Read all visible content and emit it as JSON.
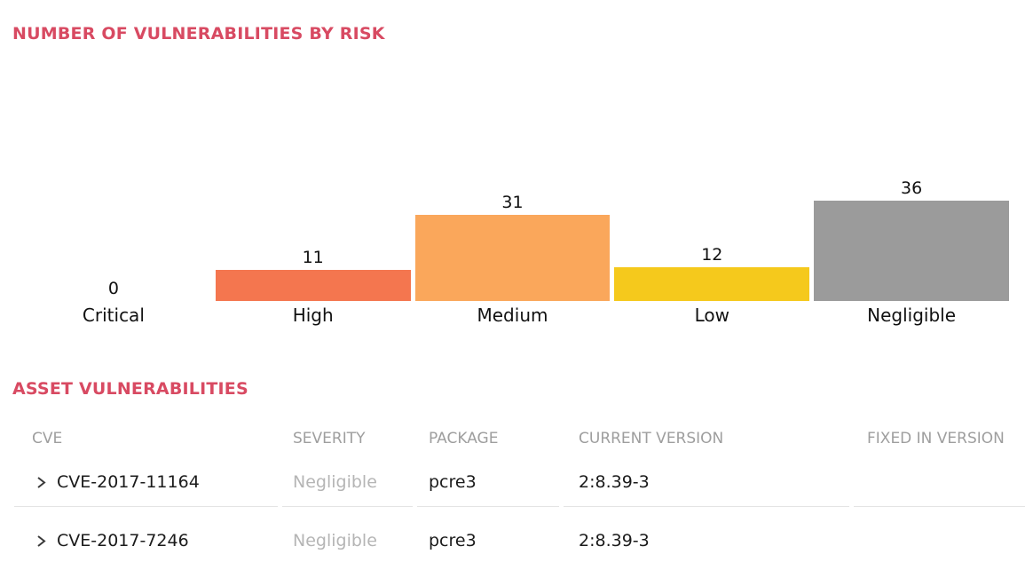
{
  "colors": {
    "accent": "#d84a62",
    "bar_high": "#f4764f",
    "bar_medium": "#faa75b",
    "bar_low": "#f5c91c",
    "bar_negligible": "#9b9b9b",
    "table_header_text": "#9e9e9e",
    "severity_muted_text": "#b5b5b5"
  },
  "chart_section": {
    "title": "NUMBER OF VULNERABILITIES BY RISK"
  },
  "chart_data": {
    "type": "bar",
    "title": "NUMBER OF VULNERABILITIES BY RISK",
    "categories": [
      "Critical",
      "High",
      "Medium",
      "Low",
      "Negligible"
    ],
    "values": [
      0,
      11,
      31,
      12,
      36
    ],
    "xlabel": "",
    "ylabel": "",
    "ylim": [
      0,
      36
    ],
    "grid": false,
    "legend": false,
    "value_labels_shown": true,
    "bars": [
      {
        "label": "Critical",
        "value": 0,
        "color": null
      },
      {
        "label": "High",
        "value": 11,
        "color": "#f4764f"
      },
      {
        "label": "Medium",
        "value": 31,
        "color": "#faa75b"
      },
      {
        "label": "Low",
        "value": 12,
        "color": "#f5c91c"
      },
      {
        "label": "Negligible",
        "value": 36,
        "color": "#9b9b9b"
      }
    ]
  },
  "table_section": {
    "title": "ASSET VULNERABILITIES",
    "columns": [
      "CVE",
      "SEVERITY",
      "PACKAGE",
      "CURRENT VERSION",
      "FIXED IN VERSION"
    ],
    "rows": [
      {
        "cve": "CVE-2017-11164",
        "severity": "Negligible",
        "package": "pcre3",
        "current_version": "2:8.39-3",
        "fixed_in_version": ""
      },
      {
        "cve": "CVE-2017-7246",
        "severity": "Negligible",
        "package": "pcre3",
        "current_version": "2:8.39-3",
        "fixed_in_version": ""
      }
    ]
  }
}
